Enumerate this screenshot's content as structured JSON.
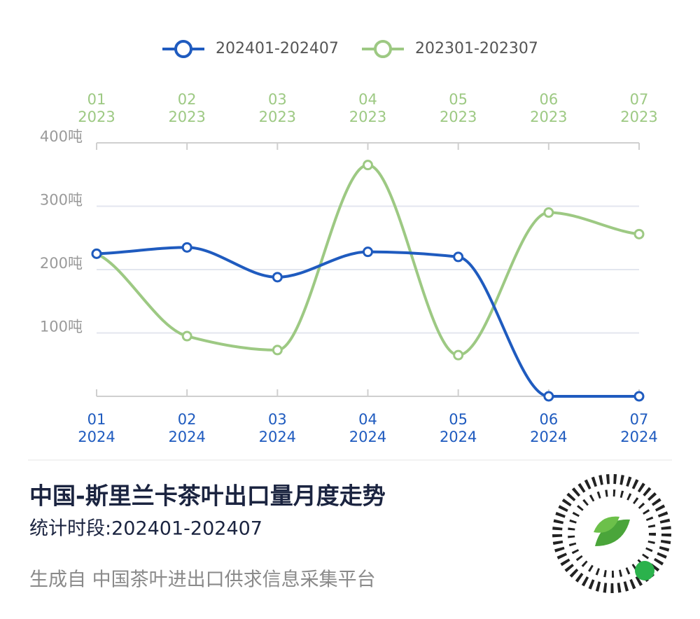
{
  "chart_data": {
    "type": "line",
    "categories": [
      "01",
      "02",
      "03",
      "04",
      "05",
      "06",
      "07"
    ],
    "series": [
      {
        "name": "202401-202407",
        "year": "2024",
        "color": "#1f5bbf",
        "values": [
          225,
          235,
          188,
          228,
          220,
          0,
          0
        ]
      },
      {
        "name": "202301-202307",
        "year": "2023",
        "color": "#9dc983",
        "values": [
          225,
          95,
          73,
          365,
          65,
          290,
          256
        ]
      }
    ],
    "ylim": [
      0,
      400
    ],
    "yticks": [
      {
        "value": 100,
        "label": "100吨"
      },
      {
        "value": 200,
        "label": "200吨"
      },
      {
        "value": 300,
        "label": "300吨"
      },
      {
        "value": 400,
        "label": "400吨"
      }
    ],
    "grid": true
  },
  "footer": {
    "title": "中国-斯里兰卡茶叶出口量月度走势",
    "subtitle": "统计时段:202401-202407",
    "source": "生成自 中国茶叶进出口供求信息采集平台"
  }
}
